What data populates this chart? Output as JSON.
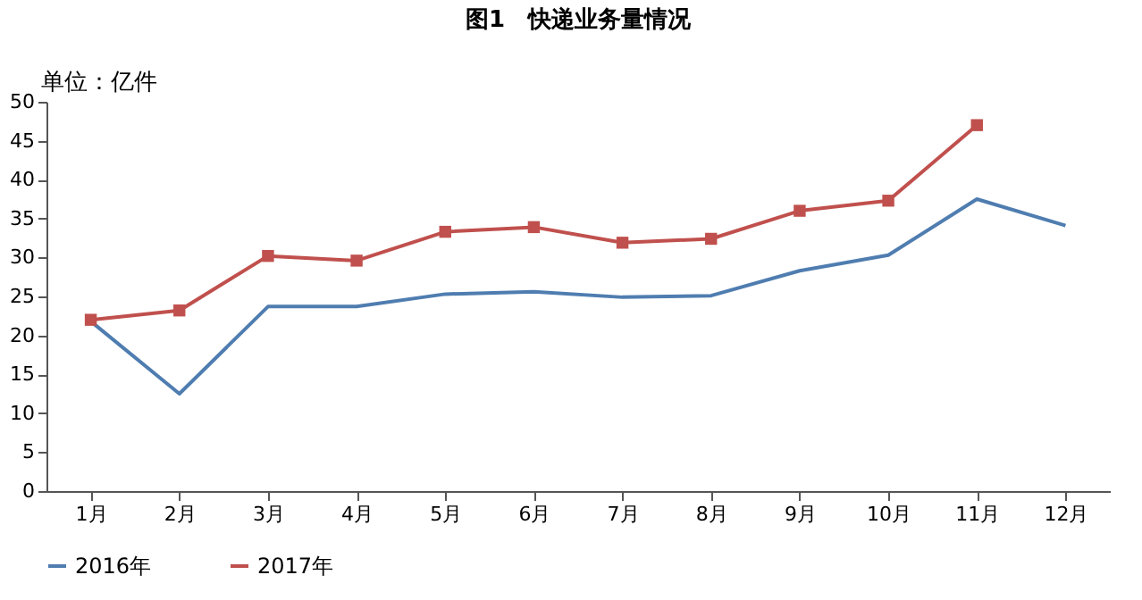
{
  "chart_data": {
    "type": "line",
    "title": "图1　快递业务量情况",
    "ylabel": "单位：亿件",
    "categories": [
      "1月",
      "2月",
      "3月",
      "4月",
      "5月",
      "6月",
      "7月",
      "8月",
      "9月",
      "10月",
      "11月",
      "12月"
    ],
    "series": [
      {
        "name": "2016年",
        "color": "#4f7db0",
        "marker": "none",
        "values": [
          21.8,
          12.5,
          23.7,
          23.7,
          25.3,
          25.6,
          24.9,
          25.1,
          28.3,
          30.3,
          37.5,
          34.1
        ]
      },
      {
        "name": "2017年",
        "color": "#c0504d",
        "marker": "square",
        "values": [
          22.0,
          23.2,
          30.2,
          29.6,
          33.3,
          33.9,
          31.9,
          32.4,
          36.0,
          37.3,
          47.0,
          null
        ]
      }
    ],
    "ylim": [
      0,
      50
    ],
    "yticks": [
      0,
      5,
      10,
      15,
      20,
      25,
      30,
      35,
      40,
      45,
      50
    ],
    "grid": false,
    "legend": "bottom"
  }
}
